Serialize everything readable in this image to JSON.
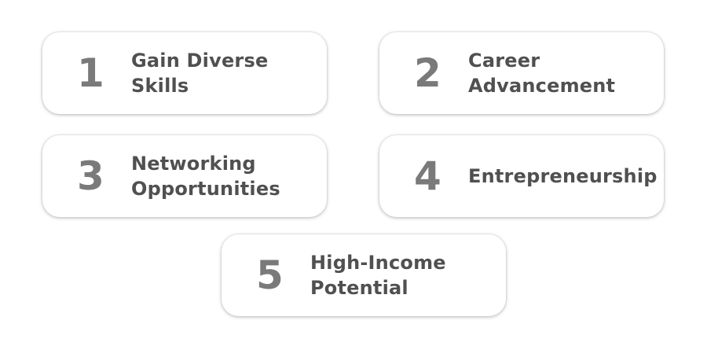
{
  "cards": [
    {
      "number": "1",
      "line1": "Gain Diverse",
      "line2": "Skills"
    },
    {
      "number": "2",
      "line1": "Career",
      "line2": "Advancement"
    },
    {
      "number": "3",
      "line1": "Networking",
      "line2": "Opportunities"
    },
    {
      "number": "4",
      "line1": "Entrepreneurship",
      "line2": ""
    },
    {
      "number": "5",
      "line1": "High-Income",
      "line2": "Potential"
    }
  ],
  "colors": {
    "number": "#7a7a7a",
    "text": "#505050",
    "card_background": "#ffffff"
  }
}
